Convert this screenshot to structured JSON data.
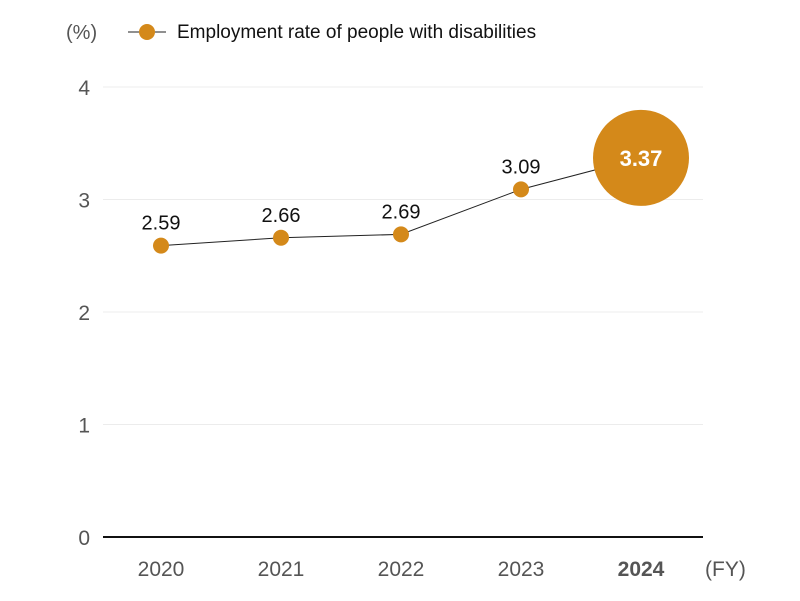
{
  "chart_data": {
    "type": "line",
    "title": "",
    "ylabel": "(%)",
    "xlabel": "(FY)",
    "legend": {
      "label": "Employment rate of people with disabilities",
      "position": "top-left"
    },
    "categories": [
      "2020",
      "2021",
      "2022",
      "2023",
      "2024"
    ],
    "series": [
      {
        "name": "Employment rate of people with disabilities",
        "values": [
          2.59,
          2.66,
          2.69,
          3.09,
          3.37
        ]
      }
    ],
    "data_labels": [
      "2.59",
      "2.66",
      "2.69",
      "3.09",
      "3.37"
    ],
    "highlight_category": "2024",
    "ylim": [
      0,
      4
    ],
    "yticks": [
      "0",
      "1",
      "2",
      "3",
      "4"
    ],
    "grid": true,
    "colors": {
      "marker": "#D4891A",
      "line": "#222222",
      "grid": "#ececec",
      "axis": "#111111"
    }
  }
}
